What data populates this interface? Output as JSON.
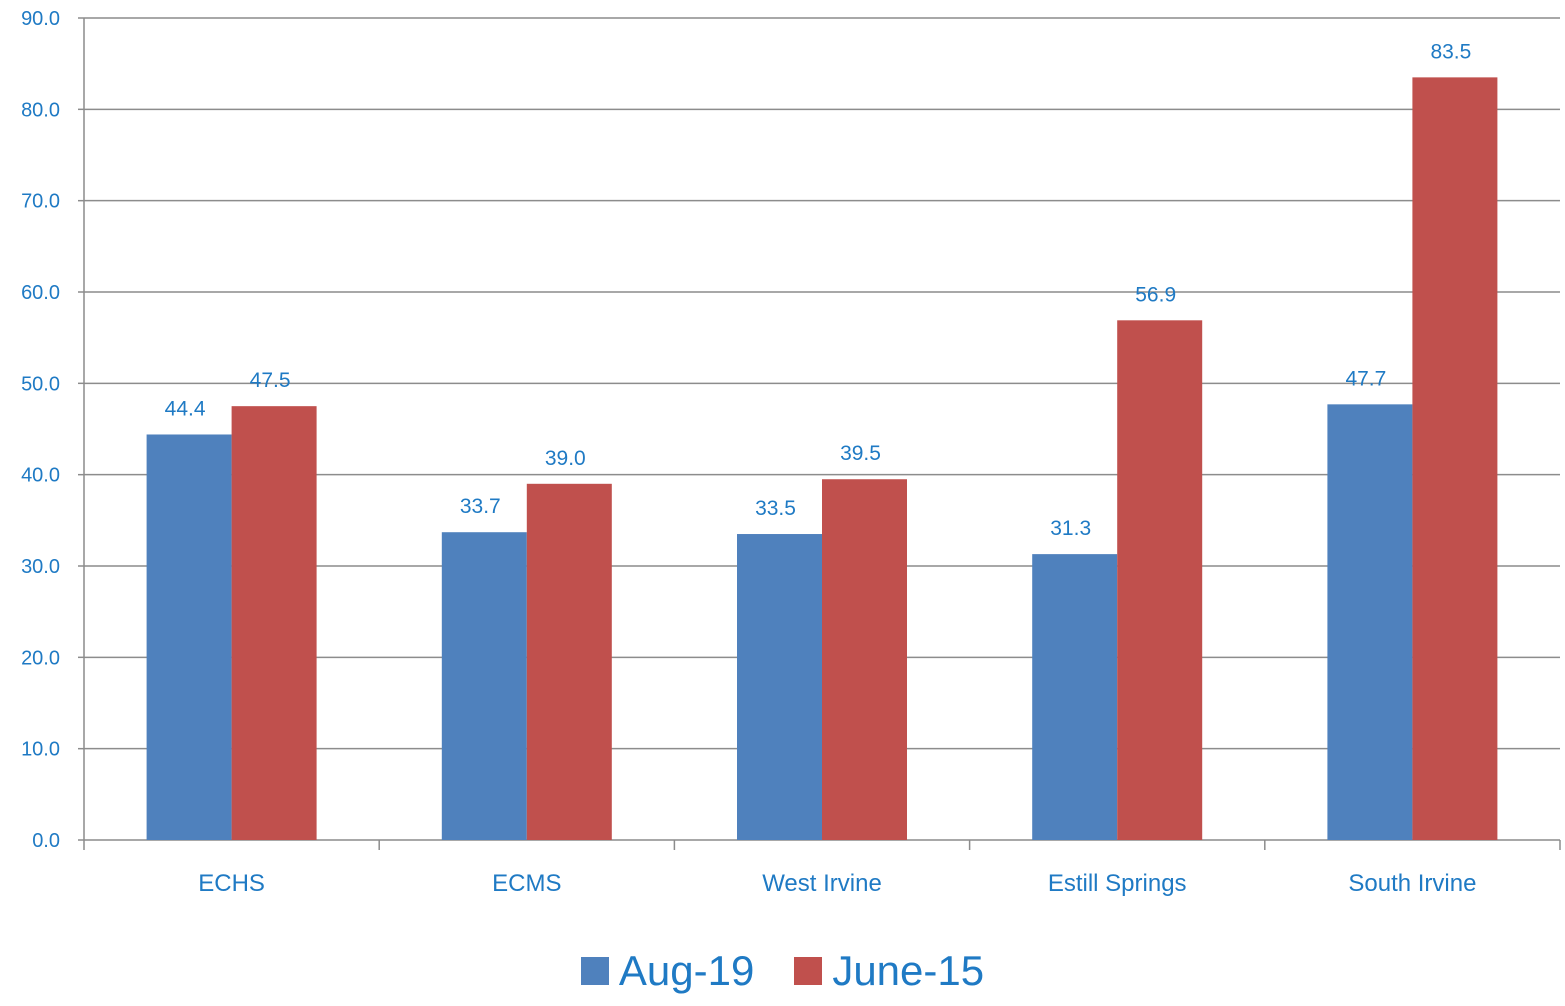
{
  "chart_data": {
    "type": "bar",
    "categories": [
      "ECHS",
      "ECMS",
      "West Irvine",
      "Estill Springs",
      "South Irvine"
    ],
    "series": [
      {
        "name": "Aug-19",
        "values": [
          44.4,
          33.7,
          33.5,
          31.3,
          47.7
        ],
        "color": "#4f81bd",
        "labels": [
          "44.4",
          "33.7",
          "33.5",
          "31.3",
          "47.7"
        ]
      },
      {
        "name": "June-15",
        "values": [
          47.5,
          39.0,
          39.5,
          56.9,
          83.5
        ],
        "color": "#c0504d",
        "labels": [
          "47.5",
          "39.0",
          "39.5",
          "56.9",
          "83.5"
        ]
      }
    ],
    "ylim": [
      0,
      90
    ],
    "yticks": [
      "0.0",
      "10.0",
      "20.0",
      "30.0",
      "40.0",
      "50.0",
      "60.0",
      "70.0",
      "80.0",
      "90.0"
    ],
    "title": "",
    "xlabel": "",
    "ylabel": "",
    "grid": true,
    "legend_position": "bottom"
  }
}
